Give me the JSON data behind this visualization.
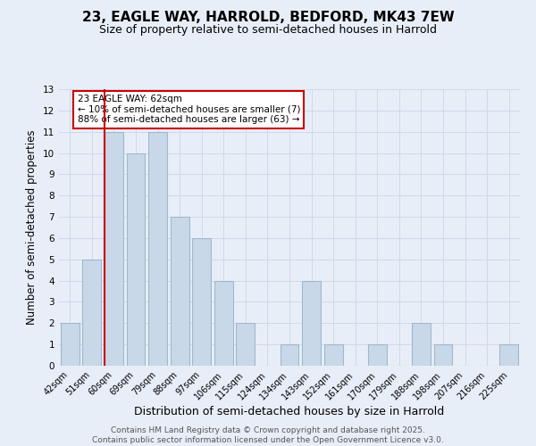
{
  "title": "23, EAGLE WAY, HARROLD, BEDFORD, MK43 7EW",
  "subtitle": "Size of property relative to semi-detached houses in Harrold",
  "xlabel": "Distribution of semi-detached houses by size in Harrold",
  "ylabel": "Number of semi-detached properties",
  "categories": [
    "42sqm",
    "51sqm",
    "60sqm",
    "69sqm",
    "79sqm",
    "88sqm",
    "97sqm",
    "106sqm",
    "115sqm",
    "124sqm",
    "134sqm",
    "143sqm",
    "152sqm",
    "161sqm",
    "170sqm",
    "179sqm",
    "188sqm",
    "198sqm",
    "207sqm",
    "216sqm",
    "225sqm"
  ],
  "values": [
    2,
    5,
    11,
    10,
    11,
    7,
    6,
    4,
    2,
    0,
    1,
    4,
    1,
    0,
    1,
    0,
    2,
    1,
    0,
    0,
    1
  ],
  "bar_color": "#c8d8e8",
  "bar_edge_color": "#a0b8cc",
  "highlight_index": 2,
  "highlight_line_color": "#cc0000",
  "annotation_text": "23 EAGLE WAY: 62sqm\n← 10% of semi-detached houses are smaller (7)\n88% of semi-detached houses are larger (63) →",
  "annotation_box_color": "#ffffff",
  "annotation_box_edge_color": "#cc0000",
  "ylim": [
    0,
    13
  ],
  "yticks": [
    0,
    1,
    2,
    3,
    4,
    5,
    6,
    7,
    8,
    9,
    10,
    11,
    12,
    13
  ],
  "grid_color": "#d0d8e8",
  "background_color": "#e8eef8",
  "footer_text": "Contains HM Land Registry data © Crown copyright and database right 2025.\nContains public sector information licensed under the Open Government Licence v3.0.",
  "title_fontsize": 11,
  "subtitle_fontsize": 9,
  "xlabel_fontsize": 9,
  "ylabel_fontsize": 8.5,
  "annotation_fontsize": 7.5,
  "footer_fontsize": 6.5,
  "tick_fontsize": 7
}
